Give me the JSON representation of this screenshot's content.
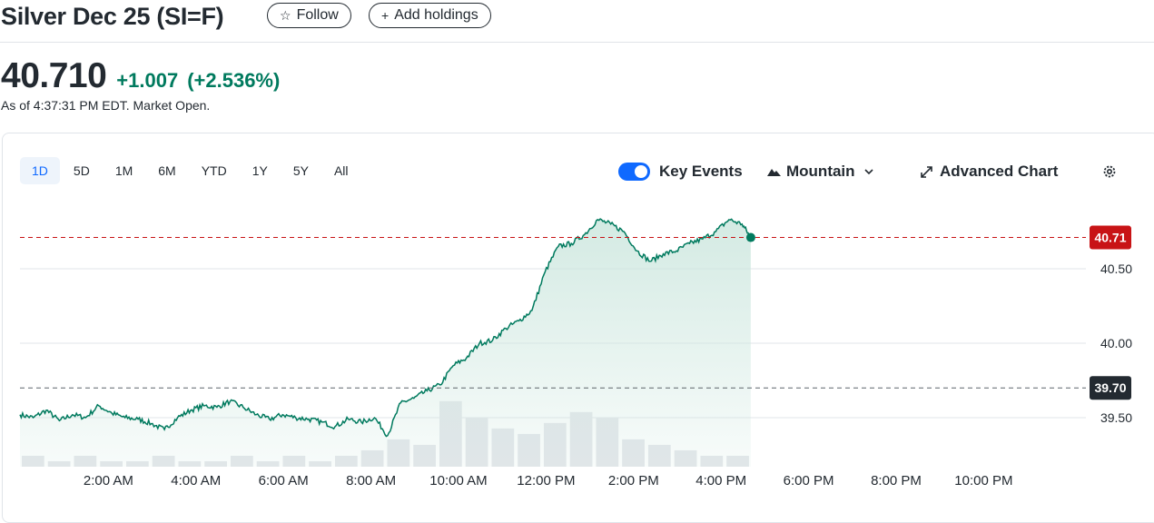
{
  "header": {
    "title": "Silver Dec 25 (SI=F)",
    "follow_label": "Follow",
    "add_holdings_label": "Add holdings"
  },
  "quote": {
    "price": "40.710",
    "change": "+1.007",
    "change_pct": "(+2.536%)",
    "as_of": "As of 4:37:31 PM EDT. Market Open."
  },
  "toolbar": {
    "ranges": [
      "1D",
      "5D",
      "1M",
      "6M",
      "YTD",
      "1Y",
      "5Y",
      "All"
    ],
    "active_range": "1D",
    "key_events_label": "Key Events",
    "key_events_on": true,
    "chart_type_label": "Mountain",
    "advanced_chart_label": "Advanced Chart"
  },
  "colors": {
    "line": "#007a5e",
    "area": "#cfe8e0",
    "current_price_tag": "#c81416",
    "prev_close_tag": "#232a31",
    "active_range": "#0f69ff"
  },
  "chart_data": {
    "type": "area",
    "x_unit": "hour of day",
    "x_tick_labels": [
      "2:00 AM",
      "4:00 AM",
      "6:00 AM",
      "8:00 AM",
      "10:00 AM",
      "12:00 PM",
      "2:00 PM",
      "4:00 PM",
      "6:00 PM",
      "8:00 PM",
      "10:00 PM"
    ],
    "x_tick_values": [
      2,
      4,
      6,
      8,
      10,
      12,
      14,
      16,
      18,
      20,
      22
    ],
    "xlim": [
      0,
      24
    ],
    "y_tick_labels": [
      "39.50",
      "40.00",
      "40.50"
    ],
    "y_tick_values": [
      39.5,
      40.0,
      40.5
    ],
    "grid": true,
    "current_price_label": "40.71",
    "current_price": 40.71,
    "previous_close_label": "39.70",
    "previous_close": 39.7,
    "series": [
      {
        "x": [
          0,
          0.3,
          0.6,
          0.9,
          1.2,
          1.5,
          1.8,
          2.1,
          2.4,
          2.7,
          3.0,
          3.3,
          3.6,
          3.9,
          4.2,
          4.5,
          4.8,
          5.1,
          5.4,
          5.7,
          6.0,
          6.3,
          6.6,
          6.9,
          7.2,
          7.5,
          7.8,
          8.1,
          8.4,
          8.7,
          9.0,
          9.3,
          9.6,
          9.9,
          10.2,
          10.5,
          10.8,
          11.1,
          11.4,
          11.7,
          12.0,
          12.3,
          12.6,
          12.9,
          13.2,
          13.5,
          13.8,
          14.1,
          14.4,
          14.7,
          15.0,
          15.3,
          15.6,
          15.9,
          16.2,
          16.5,
          16.7
        ],
        "y": [
          39.52,
          39.5,
          39.55,
          39.48,
          39.52,
          39.5,
          39.58,
          39.53,
          39.5,
          39.49,
          39.46,
          39.42,
          39.5,
          39.55,
          39.58,
          39.57,
          39.61,
          39.57,
          39.52,
          39.49,
          39.52,
          39.5,
          39.49,
          39.47,
          39.44,
          39.49,
          39.47,
          39.5,
          39.38,
          39.6,
          39.63,
          39.68,
          39.72,
          39.85,
          39.9,
          40.0,
          40.02,
          40.1,
          40.15,
          40.22,
          40.48,
          40.65,
          40.67,
          40.73,
          40.83,
          40.8,
          40.75,
          40.62,
          40.55,
          40.6,
          40.62,
          40.67,
          40.7,
          40.75,
          40.83,
          40.8,
          40.71
        ]
      }
    ],
    "volume": [
      2,
      1,
      2,
      1,
      1,
      2,
      1,
      1,
      2,
      1,
      2,
      1,
      2,
      3,
      5,
      4,
      12,
      9,
      7,
      6,
      8,
      10,
      9,
      5,
      4,
      3,
      2,
      2
    ]
  }
}
